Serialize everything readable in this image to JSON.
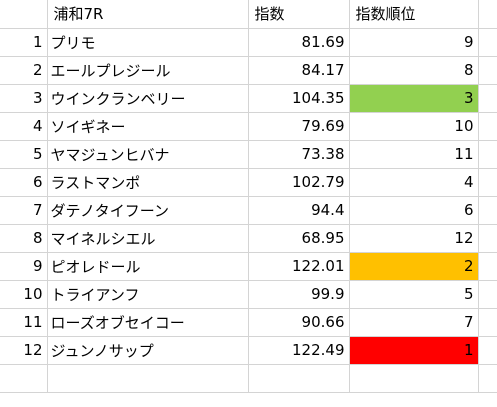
{
  "header": {
    "race": "浦和7R",
    "index_label": "指数",
    "rank_label": "指数順位"
  },
  "colors": {
    "green": "#92d050",
    "orange": "#ffc000",
    "red": "#ff0000",
    "grid": "#d4d4d4"
  },
  "rows": [
    {
      "num": "1",
      "name": "プリモ",
      "index": "81.69",
      "rank": "9",
      "fill": ""
    },
    {
      "num": "2",
      "name": "エールプレジール",
      "index": "84.17",
      "rank": "8",
      "fill": ""
    },
    {
      "num": "3",
      "name": "ウインクランベリー",
      "index": "104.35",
      "rank": "3",
      "fill": "#92d050"
    },
    {
      "num": "4",
      "name": "ソイギネー",
      "index": "79.69",
      "rank": "10",
      "fill": ""
    },
    {
      "num": "5",
      "name": "ヤマジュンヒバナ",
      "index": "73.38",
      "rank": "11",
      "fill": ""
    },
    {
      "num": "6",
      "name": "ラストマンポ",
      "index": "102.79",
      "rank": "4",
      "fill": ""
    },
    {
      "num": "7",
      "name": "ダテノタイフーン",
      "index": "94.4",
      "rank": "6",
      "fill": ""
    },
    {
      "num": "8",
      "name": "マイネルシエル",
      "index": "68.95",
      "rank": "12",
      "fill": ""
    },
    {
      "num": "9",
      "name": "ピオレドール",
      "index": "122.01",
      "rank": "2",
      "fill": "#ffc000"
    },
    {
      "num": "10",
      "name": "トライアンフ",
      "index": "99.9",
      "rank": "5",
      "fill": ""
    },
    {
      "num": "11",
      "name": "ローズオブセイコー",
      "index": "90.66",
      "rank": "7",
      "fill": ""
    },
    {
      "num": "12",
      "name": "ジュンノサップ",
      "index": "122.49",
      "rank": "1",
      "fill": "#ff0000"
    }
  ]
}
